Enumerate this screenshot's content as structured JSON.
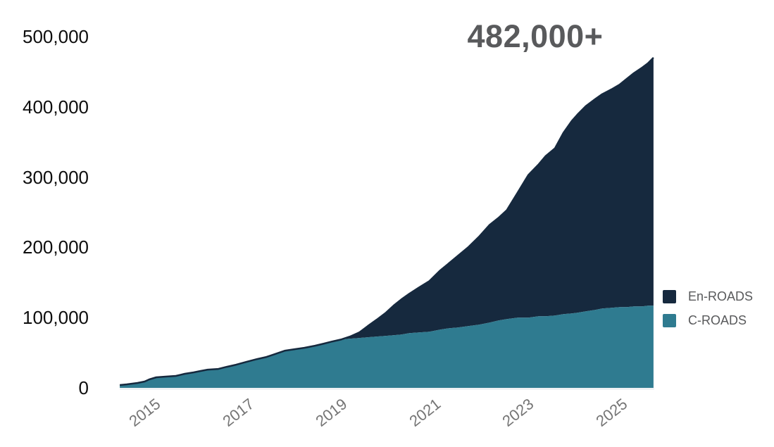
{
  "annotation": {
    "value": "482,000+",
    "color": "#595a5c"
  },
  "legend": {
    "position": "right",
    "items": [
      {
        "label": "En-ROADS",
        "color": "#16293e"
      },
      {
        "label": "C-ROADS",
        "color": "#2f7b90"
      }
    ]
  },
  "colors": {
    "en_roads_area": "#16293e",
    "c_roads_area": "#2f7b90",
    "top_edge_stroke": "#16293e",
    "y_tick_text": "#0d0d0d",
    "x_tick_text": "#757575",
    "annotation_text": "#595a5c",
    "baseline": "#e9edf0",
    "background": "#ffffff"
  },
  "chart_data": {
    "type": "area",
    "stacked": true,
    "title": "",
    "xlabel": "",
    "ylabel": "",
    "annotation": "482,000+",
    "grid": false,
    "legend_position": "right",
    "ylim": [
      0,
      500000
    ],
    "xlim": [
      2014.67,
      2026.1
    ],
    "yticks": [
      0,
      100000,
      200000,
      300000,
      400000,
      500000
    ],
    "ytick_labels": [
      "0",
      "100,000",
      "200,000",
      "300,000",
      "400,000",
      "500,000"
    ],
    "xticks": [
      2015,
      2017,
      2019,
      2021,
      2023,
      2025
    ],
    "xtick_labels": [
      "2015",
      "2017",
      "2019",
      "2021",
      "2023",
      "2025"
    ],
    "x": [
      2014.67,
      2014.82,
      2015.05,
      2015.2,
      2015.3,
      2015.45,
      2015.65,
      2015.87,
      2016.06,
      2016.25,
      2016.4,
      2016.55,
      2016.78,
      2016.96,
      2017.16,
      2017.38,
      2017.61,
      2017.81,
      2017.99,
      2018.21,
      2018.41,
      2018.62,
      2018.85,
      2019.04,
      2019.22,
      2019.42,
      2019.6,
      2019.8,
      2019.98,
      2020.17,
      2020.37,
      2020.55,
      2020.7,
      2020.87,
      2021.08,
      2021.3,
      2021.53,
      2021.73,
      2021.91,
      2022.13,
      2022.36,
      2022.59,
      2022.78,
      2022.96,
      2023.19,
      2023.42,
      2023.64,
      2023.79,
      2023.99,
      2024.17,
      2024.35,
      2024.47,
      2024.65,
      2024.85,
      2025.0,
      2025.2,
      2025.38,
      2025.53,
      2025.68,
      2025.86,
      2025.98,
      2026.1
    ],
    "series": [
      {
        "name": "C-ROADS",
        "color": "#2f7b90",
        "values": [
          4000,
          5000,
          7000,
          9000,
          12000,
          15000,
          16000,
          17000,
          20000,
          22000,
          24000,
          26000,
          27000,
          30000,
          33000,
          37000,
          41000,
          44000,
          48000,
          53000,
          55000,
          57000,
          60000,
          63000,
          66000,
          69000,
          70000,
          71000,
          72000,
          73000,
          74000,
          75000,
          76000,
          78000,
          79000,
          80000,
          83000,
          85000,
          86000,
          88000,
          90000,
          93000,
          96000,
          98000,
          100000,
          100000,
          102000,
          102000,
          103000,
          105000,
          106000,
          107000,
          109000,
          111000,
          113000,
          114000,
          115000,
          115000,
          116000,
          116000,
          117000,
          117000
        ]
      },
      {
        "name": "En-ROADS",
        "color": "#16293e",
        "values": [
          0,
          0,
          0,
          0,
          0,
          0,
          0,
          0,
          0,
          0,
          0,
          0,
          0,
          0,
          0,
          0,
          0,
          0,
          0,
          0,
          0,
          0,
          0,
          0,
          0,
          0,
          3000,
          8000,
          16000,
          24000,
          33000,
          43000,
          50000,
          56000,
          64000,
          72000,
          84000,
          93000,
          102000,
          112000,
          125000,
          139000,
          146000,
          155000,
          178000,
          203000,
          216000,
          228000,
          238000,
          258000,
          274000,
          282000,
          292000,
          300000,
          305000,
          311000,
          317000,
          325000,
          332000,
          340000,
          345000,
          353000
        ]
      }
    ]
  }
}
